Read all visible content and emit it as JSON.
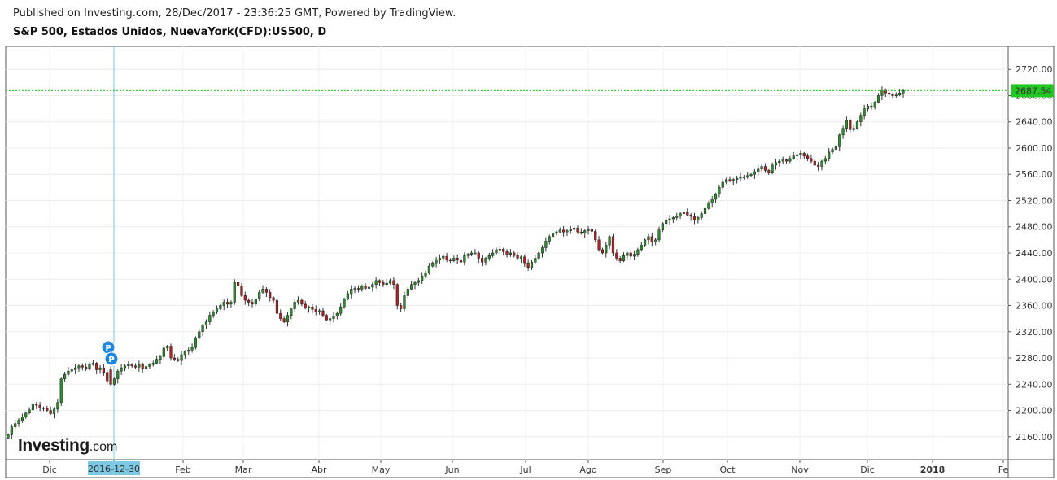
{
  "header": {
    "published": "Published on Investing.com, 28/Dec/2017 - 23:36:25 GMT, Powered by TradingView.",
    "instrument": "S&P 500, Estados Unidos, NuevaYork(CFD):US500, D"
  },
  "logo": {
    "brand": "Investing",
    "suffix": ".com"
  },
  "colors": {
    "up": "#2e8b2e",
    "down": "#b02020",
    "last_price": "#22c722",
    "crosshair": "#7ec8e3",
    "marker": "#1e88e5"
  },
  "crosshair_label": "2016-12-30",
  "markers": [
    {
      "label": "P"
    },
    {
      "label": "P"
    }
  ],
  "chart_data": {
    "type": "candlestick",
    "title": "",
    "y_range": [
      2125,
      2755
    ],
    "y_ticks": [
      2160,
      2200,
      2240,
      2280,
      2320,
      2360,
      2400,
      2440,
      2480,
      2520,
      2560,
      2600,
      2640,
      2680,
      2720
    ],
    "y_tick_labels": [
      "2160.00",
      "2200.00",
      "2240.00",
      "2280.00",
      "2320.00",
      "2360.00",
      "2400.00",
      "2440.00",
      "2480.00",
      "2520.00",
      "2560.00",
      "2600.00",
      "2640.00",
      "2680.00",
      "2720.00"
    ],
    "x_ticks": [
      "Dic",
      "2016-12-30",
      "Feb",
      "Mar",
      "Abr",
      "May",
      "Jun",
      "Jul",
      "Ago",
      "Sep",
      "Oct",
      "Nov",
      "Dic",
      "2018",
      "Fe"
    ],
    "last_price": 2687.54,
    "last_price_label": "2687.54",
    "grid": true,
    "closes": [
      2163,
      2175,
      2180,
      2185,
      2190,
      2196,
      2201,
      2210,
      2208,
      2204,
      2203,
      2200,
      2195,
      2202,
      2212,
      2248,
      2255,
      2260,
      2262,
      2265,
      2268,
      2266,
      2264,
      2270,
      2272,
      2262,
      2265,
      2258,
      2245,
      2240,
      2248,
      2260,
      2265,
      2268,
      2270,
      2268,
      2266,
      2270,
      2264,
      2267,
      2270,
      2272,
      2278,
      2282,
      2295,
      2298,
      2280,
      2278,
      2276,
      2285,
      2290,
      2292,
      2296,
      2310,
      2320,
      2330,
      2335,
      2345,
      2350,
      2355,
      2360,
      2365,
      2362,
      2365,
      2395,
      2390,
      2375,
      2368,
      2365,
      2362,
      2370,
      2380,
      2385,
      2380,
      2372,
      2368,
      2348,
      2340,
      2335,
      2345,
      2355,
      2365,
      2368,
      2362,
      2356,
      2358,
      2354,
      2350,
      2352,
      2345,
      2338,
      2340,
      2344,
      2348,
      2358,
      2370,
      2378,
      2385,
      2386,
      2385,
      2390,
      2386,
      2388,
      2392,
      2398,
      2395,
      2392,
      2394,
      2398,
      2392,
      2360,
      2355,
      2375,
      2385,
      2392,
      2395,
      2398,
      2405,
      2410,
      2420,
      2425,
      2430,
      2432,
      2435,
      2430,
      2428,
      2432,
      2430,
      2426,
      2436,
      2438,
      2440,
      2440,
      2432,
      2426,
      2432,
      2436,
      2440,
      2445,
      2446,
      2442,
      2438,
      2440,
      2436,
      2432,
      2434,
      2425,
      2418,
      2426,
      2432,
      2440,
      2448,
      2458,
      2465,
      2470,
      2472,
      2475,
      2472,
      2474,
      2476,
      2478,
      2472,
      2470,
      2474,
      2476,
      2473,
      2460,
      2445,
      2440,
      2452,
      2465,
      2440,
      2432,
      2428,
      2436,
      2440,
      2435,
      2438,
      2445,
      2452,
      2460,
      2465,
      2457,
      2460,
      2475,
      2485,
      2490,
      2492,
      2494,
      2496,
      2500,
      2502,
      2498,
      2496,
      2490,
      2494,
      2500,
      2508,
      2516,
      2522,
      2530,
      2540,
      2548,
      2552,
      2550,
      2552,
      2554,
      2556,
      2556,
      2558,
      2560,
      2564,
      2568,
      2572,
      2566,
      2562,
      2574,
      2578,
      2580,
      2582,
      2580,
      2584,
      2588,
      2590,
      2592,
      2588,
      2584,
      2580,
      2574,
      2572,
      2580,
      2584,
      2594,
      2598,
      2602,
      2620,
      2630,
      2642,
      2628,
      2630,
      2640,
      2650,
      2660,
      2664,
      2662,
      2670,
      2680,
      2688,
      2684,
      2682,
      2680,
      2681,
      2684,
      2687.54
    ],
    "first_open": 2158,
    "opens": [
      2158,
      2163,
      2175,
      2180,
      2185,
      2190,
      2196,
      2201,
      2210,
      2208,
      2204,
      2203,
      2200,
      2195,
      2202,
      2212,
      2248,
      2255,
      2260,
      2262,
      2265,
      2268,
      2266,
      2264,
      2270,
      2272,
      2262,
      2265,
      2258,
      2262,
      2240,
      2248,
      2260,
      2265,
      2268,
      2270,
      2268,
      2266,
      2270,
      2264,
      2267,
      2270,
      2272,
      2278,
      2282,
      2295,
      2298,
      2280,
      2278,
      2276,
      2285,
      2290,
      2292,
      2296,
      2310,
      2320,
      2330,
      2335,
      2345,
      2350,
      2355,
      2360,
      2365,
      2362,
      2365,
      2395,
      2390,
      2375,
      2368,
      2365,
      2362,
      2370,
      2380,
      2385,
      2380,
      2372,
      2368,
      2348,
      2340,
      2335,
      2345,
      2355,
      2365,
      2368,
      2362,
      2356,
      2358,
      2354,
      2350,
      2352,
      2345,
      2338,
      2340,
      2344,
      2348,
      2358,
      2370,
      2378,
      2385,
      2386,
      2385,
      2390,
      2386,
      2388,
      2392,
      2398,
      2395,
      2392,
      2394,
      2398,
      2392,
      2360,
      2355,
      2375,
      2385,
      2392,
      2395,
      2398,
      2405,
      2410,
      2420,
      2425,
      2430,
      2432,
      2435,
      2430,
      2428,
      2432,
      2430,
      2426,
      2436,
      2438,
      2440,
      2440,
      2432,
      2426,
      2432,
      2436,
      2440,
      2445,
      2446,
      2442,
      2438,
      2440,
      2436,
      2432,
      2434,
      2425,
      2418,
      2426,
      2432,
      2440,
      2448,
      2458,
      2465,
      2470,
      2472,
      2475,
      2472,
      2474,
      2476,
      2478,
      2472,
      2470,
      2474,
      2476,
      2473,
      2460,
      2445,
      2440,
      2452,
      2465,
      2440,
      2432,
      2428,
      2436,
      2440,
      2435,
      2438,
      2445,
      2452,
      2460,
      2465,
      2457,
      2460,
      2475,
      2485,
      2490,
      2492,
      2494,
      2496,
      2500,
      2502,
      2498,
      2496,
      2490,
      2494,
      2500,
      2508,
      2516,
      2522,
      2530,
      2540,
      2548,
      2552,
      2550,
      2552,
      2554,
      2556,
      2556,
      2558,
      2560,
      2564,
      2568,
      2572,
      2566,
      2562,
      2574,
      2578,
      2580,
      2582,
      2580,
      2584,
      2588,
      2590,
      2592,
      2588,
      2584,
      2580,
      2574,
      2572,
      2580,
      2584,
      2594,
      2598,
      2602,
      2620,
      2630,
      2642,
      2628,
      2630,
      2640,
      2650,
      2660,
      2664,
      2662,
      2670,
      2680,
      2688,
      2684,
      2682,
      2680,
      2681,
      2684
    ]
  }
}
